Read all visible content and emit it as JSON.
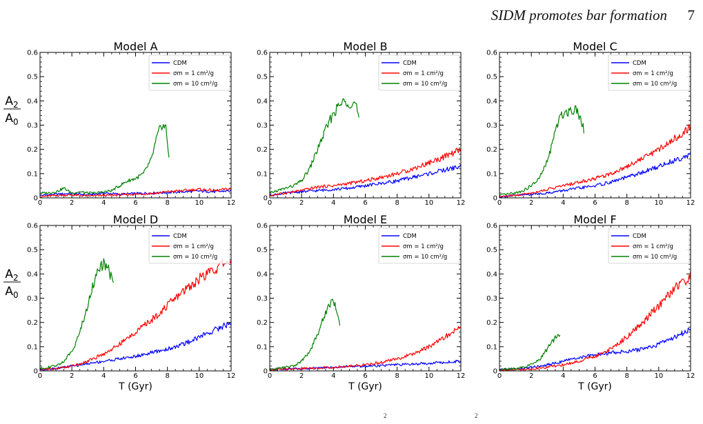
{
  "page": {
    "running_head": "SIDM promotes bar formation",
    "page_number": "7",
    "caption_fragments": [
      "2",
      "2"
    ]
  },
  "figure": {
    "ylabel_num": "A",
    "ylabel_num_sub": "2",
    "ylabel_den": "A",
    "ylabel_den_sub": "0",
    "xlabel": "T (Gyr)"
  },
  "chart_data": [
    {
      "type": "line",
      "title": "Model A",
      "xlim": [
        0,
        12
      ],
      "ylim": [
        0,
        0.6
      ],
      "xticks": [
        0,
        2,
        4,
        6,
        8,
        10,
        12
      ],
      "yticks": [
        0.0,
        0.1,
        0.2,
        0.3,
        0.4,
        0.5,
        0.6
      ],
      "legend": "top-right",
      "series": [
        {
          "name": "CDM",
          "color": "#0000ff",
          "x": [
            0,
            1,
            2,
            3,
            4,
            5,
            6,
            7,
            8,
            9,
            10,
            11,
            12
          ],
          "y": [
            0.01,
            0.015,
            0.018,
            0.012,
            0.02,
            0.015,
            0.018,
            0.02,
            0.022,
            0.025,
            0.028,
            0.025,
            0.03
          ]
        },
        {
          "name": "σm = 1 cm²/g",
          "color": "#ff0000",
          "x": [
            0,
            1,
            2,
            3,
            4,
            5,
            6,
            7,
            8,
            9,
            10,
            11,
            12
          ],
          "y": [
            0.005,
            0.01,
            0.012,
            0.008,
            0.01,
            0.012,
            0.015,
            0.018,
            0.025,
            0.03,
            0.035,
            0.03,
            0.038
          ]
        },
        {
          "name": "σm = 10 cm²/g",
          "color": "#008000",
          "x": [
            0,
            0.5,
            1,
            1.5,
            2,
            2.5,
            3,
            3.5,
            4,
            4.5,
            5,
            5.5,
            6,
            6.5,
            7,
            7.3,
            7.6,
            7.9,
            8.1
          ],
          "y": [
            0.02,
            0.02,
            0.025,
            0.04,
            0.02,
            0.025,
            0.02,
            0.02,
            0.025,
            0.03,
            0.05,
            0.07,
            0.08,
            0.1,
            0.16,
            0.24,
            0.3,
            0.29,
            0.17
          ]
        }
      ]
    },
    {
      "type": "line",
      "title": "Model B",
      "xlim": [
        0,
        12
      ],
      "ylim": [
        0,
        0.6
      ],
      "xticks": [
        0,
        2,
        4,
        6,
        8,
        10,
        12
      ],
      "yticks": [
        0.0,
        0.1,
        0.2,
        0.3,
        0.4,
        0.5,
        0.6
      ],
      "legend": "top-right",
      "series": [
        {
          "name": "CDM",
          "color": "#0000ff",
          "x": [
            0,
            1,
            2,
            3,
            4,
            5,
            6,
            7,
            8,
            9,
            10,
            11,
            12
          ],
          "y": [
            0.01,
            0.02,
            0.025,
            0.03,
            0.035,
            0.04,
            0.05,
            0.06,
            0.07,
            0.085,
            0.1,
            0.115,
            0.13
          ]
        },
        {
          "name": "σm = 1 cm²/g",
          "color": "#ff0000",
          "x": [
            0,
            1,
            2,
            3,
            4,
            5,
            6,
            7,
            8,
            9,
            10,
            11,
            12
          ],
          "y": [
            0.01,
            0.02,
            0.03,
            0.045,
            0.05,
            0.06,
            0.07,
            0.085,
            0.1,
            0.12,
            0.145,
            0.17,
            0.2
          ]
        },
        {
          "name": "σm = 10 cm²/g",
          "color": "#008000",
          "x": [
            0,
            0.5,
            1,
            1.5,
            2,
            2.5,
            3,
            3.5,
            4,
            4.5,
            4.8,
            5.1,
            5.4,
            5.6
          ],
          "y": [
            0.02,
            0.03,
            0.04,
            0.05,
            0.07,
            0.12,
            0.2,
            0.28,
            0.35,
            0.39,
            0.4,
            0.39,
            0.39,
            0.32
          ]
        }
      ]
    },
    {
      "type": "line",
      "title": "Model C",
      "xlim": [
        0,
        12
      ],
      "ylim": [
        0,
        0.6
      ],
      "xticks": [
        0,
        2,
        4,
        6,
        8,
        10,
        12
      ],
      "yticks": [
        0.0,
        0.1,
        0.2,
        0.3,
        0.4,
        0.5,
        0.6
      ],
      "legend": "top-right",
      "series": [
        {
          "name": "CDM",
          "color": "#0000ff",
          "x": [
            0,
            1,
            2,
            3,
            4,
            5,
            6,
            7,
            8,
            9,
            10,
            11,
            12
          ],
          "y": [
            0.005,
            0.01,
            0.015,
            0.02,
            0.03,
            0.04,
            0.05,
            0.065,
            0.085,
            0.105,
            0.13,
            0.155,
            0.18
          ]
        },
        {
          "name": "σm = 1 cm²/g",
          "color": "#ff0000",
          "x": [
            0,
            1,
            2,
            3,
            4,
            5,
            6,
            7,
            8,
            9,
            10,
            11,
            12
          ],
          "y": [
            0.005,
            0.01,
            0.02,
            0.035,
            0.05,
            0.065,
            0.08,
            0.1,
            0.13,
            0.165,
            0.2,
            0.245,
            0.29
          ]
        },
        {
          "name": "σm = 10 cm²/g",
          "color": "#008000",
          "x": [
            0,
            0.5,
            1,
            1.5,
            2,
            2.5,
            3,
            3.3,
            3.6,
            4,
            4.4,
            4.8,
            5.1,
            5.3
          ],
          "y": [
            0.01,
            0.015,
            0.02,
            0.03,
            0.05,
            0.08,
            0.15,
            0.22,
            0.3,
            0.35,
            0.36,
            0.37,
            0.33,
            0.28
          ]
        }
      ]
    },
    {
      "type": "line",
      "title": "Model D",
      "xlim": [
        0,
        12
      ],
      "ylim": [
        0,
        0.6
      ],
      "xticks": [
        0,
        2,
        4,
        6,
        8,
        10,
        12
      ],
      "yticks": [
        0.0,
        0.1,
        0.2,
        0.3,
        0.4,
        0.5,
        0.6
      ],
      "legend": "top-right",
      "series": [
        {
          "name": "CDM",
          "color": "#0000ff",
          "x": [
            0,
            1,
            2,
            3,
            4,
            5,
            6,
            7,
            8,
            9,
            10,
            11,
            12
          ],
          "y": [
            0.005,
            0.01,
            0.02,
            0.03,
            0.04,
            0.05,
            0.06,
            0.075,
            0.09,
            0.11,
            0.14,
            0.17,
            0.2
          ]
        },
        {
          "name": "σm = 1 cm²/g",
          "color": "#ff0000",
          "x": [
            0,
            1,
            2,
            3,
            4,
            5,
            6,
            7,
            8,
            9,
            10,
            11,
            12
          ],
          "y": [
            0.005,
            0.01,
            0.02,
            0.04,
            0.07,
            0.11,
            0.16,
            0.21,
            0.27,
            0.33,
            0.38,
            0.42,
            0.46
          ]
        },
        {
          "name": "σm = 10 cm²/g",
          "color": "#008000",
          "x": [
            0,
            0.5,
            1,
            1.5,
            2,
            2.5,
            3,
            3.3,
            3.6,
            4,
            4.2,
            4.4,
            4.6
          ],
          "y": [
            0.01,
            0.015,
            0.02,
            0.04,
            0.08,
            0.16,
            0.27,
            0.35,
            0.41,
            0.44,
            0.43,
            0.4,
            0.38
          ]
        }
      ]
    },
    {
      "type": "line",
      "title": "Model E",
      "xlim": [
        0,
        12
      ],
      "ylim": [
        0,
        0.6
      ],
      "xticks": [
        0,
        2,
        4,
        6,
        8,
        10,
        12
      ],
      "yticks": [
        0.0,
        0.1,
        0.2,
        0.3,
        0.4,
        0.5,
        0.6
      ],
      "legend": "top-right",
      "series": [
        {
          "name": "CDM",
          "color": "#0000ff",
          "x": [
            0,
            1,
            2,
            3,
            4,
            5,
            6,
            7,
            8,
            9,
            10,
            11,
            12
          ],
          "y": [
            0.005,
            0.008,
            0.01,
            0.012,
            0.015,
            0.018,
            0.02,
            0.022,
            0.025,
            0.028,
            0.032,
            0.036,
            0.04
          ]
        },
        {
          "name": "σm = 1 cm²/g",
          "color": "#ff0000",
          "x": [
            0,
            1,
            2,
            3,
            4,
            5,
            6,
            7,
            8,
            9,
            10,
            11,
            12
          ],
          "y": [
            0.005,
            0.008,
            0.01,
            0.012,
            0.015,
            0.02,
            0.025,
            0.035,
            0.05,
            0.07,
            0.1,
            0.14,
            0.18
          ]
        },
        {
          "name": "σm = 10 cm²/g",
          "color": "#008000",
          "x": [
            0,
            0.5,
            1,
            1.5,
            2,
            2.5,
            3,
            3.5,
            3.8,
            4,
            4.2,
            4.4
          ],
          "y": [
            0.005,
            0.01,
            0.015,
            0.02,
            0.04,
            0.08,
            0.15,
            0.24,
            0.28,
            0.29,
            0.25,
            0.2
          ]
        }
      ]
    },
    {
      "type": "line",
      "title": "Model F",
      "xlim": [
        0,
        12
      ],
      "ylim": [
        0,
        0.6
      ],
      "xticks": [
        0,
        2,
        4,
        6,
        8,
        10,
        12
      ],
      "yticks": [
        0.0,
        0.1,
        0.2,
        0.3,
        0.4,
        0.5,
        0.6
      ],
      "legend": "top-right",
      "series": [
        {
          "name": "CDM",
          "color": "#0000ff",
          "x": [
            0,
            1,
            2,
            3,
            4,
            5,
            6,
            7,
            8,
            9,
            10,
            11,
            12
          ],
          "y": [
            0.005,
            0.008,
            0.015,
            0.025,
            0.04,
            0.055,
            0.065,
            0.075,
            0.08,
            0.09,
            0.11,
            0.14,
            0.17
          ]
        },
        {
          "name": "σm = 1 cm²/g",
          "color": "#ff0000",
          "x": [
            0,
            1,
            2,
            3,
            4,
            5,
            6,
            7,
            8,
            9,
            10,
            11,
            12
          ],
          "y": [
            0.003,
            0.005,
            0.008,
            0.015,
            0.025,
            0.04,
            0.06,
            0.09,
            0.14,
            0.2,
            0.27,
            0.34,
            0.39
          ]
        },
        {
          "name": "σm = 10 cm²/g",
          "color": "#008000",
          "x": [
            0,
            0.5,
            1,
            1.5,
            2,
            2.5,
            3,
            3.3,
            3.6,
            3.8
          ],
          "y": [
            0.005,
            0.008,
            0.01,
            0.015,
            0.025,
            0.045,
            0.09,
            0.12,
            0.145,
            0.15
          ]
        }
      ]
    }
  ]
}
